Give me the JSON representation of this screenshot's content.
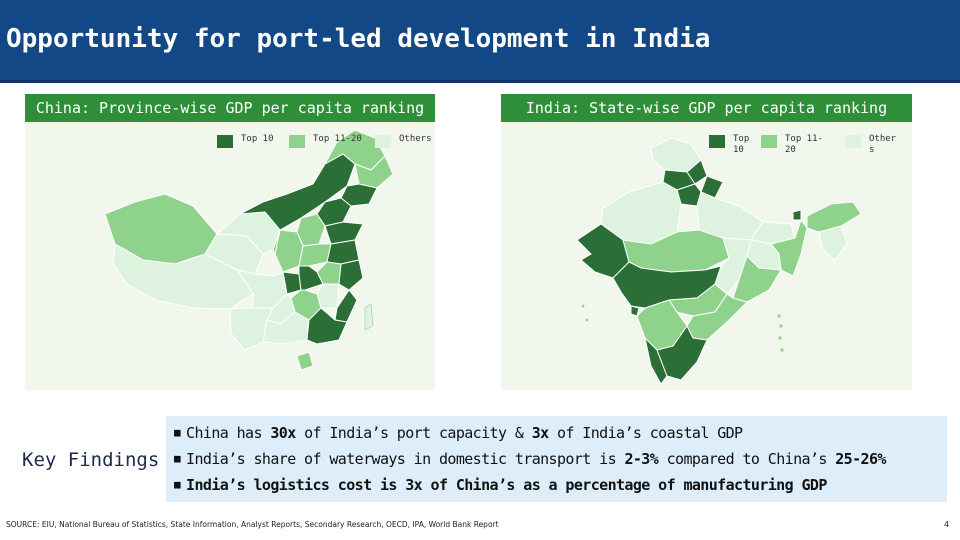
{
  "page": {
    "title": "Opportunity for port-led development in India"
  },
  "colors": {
    "brand": "#134887",
    "top10": "#2b6e36",
    "top11_20": "#8ed28c",
    "others": "#def3df",
    "header_green": "#2f8f39",
    "findings_bg": "#ddeefa"
  },
  "china_map": {
    "header": "China: Province-wise GDP  per capita ranking",
    "legend": [
      {
        "label": "Top 10",
        "color": "#2b6e36"
      },
      {
        "label": "Top 11-20",
        "color": "#8ed28c"
      },
      {
        "label": "Others",
        "color": "#def3df"
      }
    ]
  },
  "india_map": {
    "header": "India: State-wise GDP per capita ranking",
    "legend": [
      {
        "label": "Top 10",
        "color": "#2b6e36"
      },
      {
        "label": "Top 11-20",
        "color": "#8ed28c"
      },
      {
        "label": "Others",
        "color": "#def3df"
      }
    ]
  },
  "key_findings": {
    "label": "Key Findings",
    "items": [
      {
        "pre": "China has ",
        "b1": "30x",
        "mid": " of India’s port capacity  & ",
        "b2": "3x",
        "post": " of India’s coastal GDP"
      },
      {
        "pre": "India’s share of waterways in domestic transport is ",
        "b1": "2-3%",
        "mid": " compared to China’s  ",
        "b2": "25-26%",
        "post": ""
      },
      {
        "pre": "",
        "b1": "India’s logistics cost is 3x of China’s as a percentage of manufacturing GDP",
        "mid": "",
        "b2": "",
        "post": ""
      }
    ]
  },
  "footer": {
    "source": "SOURCE: EIU, National Bureau of Statistics, State Information, Analyst Reports, Secondary Research, OECD, IPA, World Bank Report",
    "page_number": "4"
  }
}
